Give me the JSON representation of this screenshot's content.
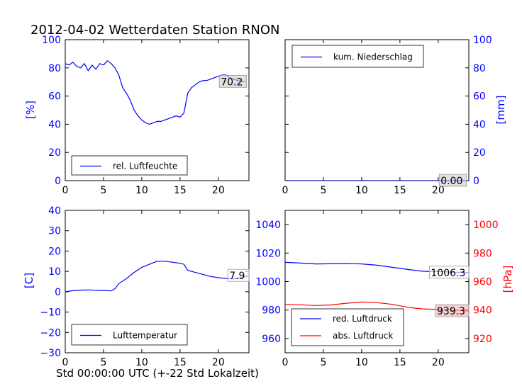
{
  "title": "2012-04-02 Wetterdaten Station RNON",
  "xlabel": "Std 00:00:00 UTC (+-22 Std Lokalzeit)",
  "colors": {
    "blue": "#0000ff",
    "red": "#ff0000",
    "black": "#000000"
  },
  "chart_data": [
    {
      "type": "line",
      "panel": "top-left",
      "ylabel": "[%]",
      "xlim": [
        0,
        24
      ],
      "ylim": [
        0,
        100
      ],
      "xticks": [
        "0",
        "5",
        "10",
        "15",
        "20"
      ],
      "yticks": [
        "0",
        "20",
        "40",
        "60",
        "80",
        "100"
      ],
      "legend": "bottom-left",
      "series": [
        {
          "name": "rel. Luftfeuchte",
          "color": "#0000ff",
          "points": [
            [
              0,
              83
            ],
            [
              0.5,
              82
            ],
            [
              1,
              84
            ],
            [
              1.5,
              81
            ],
            [
              2,
              80
            ],
            [
              2.5,
              83
            ],
            [
              3,
              78
            ],
            [
              3.5,
              82
            ],
            [
              4,
              79
            ],
            [
              4.5,
              83
            ],
            [
              5,
              82
            ],
            [
              5.5,
              85
            ],
            [
              6,
              83
            ],
            [
              6.5,
              80
            ],
            [
              7,
              75
            ],
            [
              7.5,
              66
            ],
            [
              8,
              62
            ],
            [
              8.5,
              57
            ],
            [
              9,
              50
            ],
            [
              9.5,
              46
            ],
            [
              10,
              43
            ],
            [
              10.5,
              41
            ],
            [
              11,
              40
            ],
            [
              11.5,
              41
            ],
            [
              12,
              42
            ],
            [
              12.5,
              42
            ],
            [
              13,
              43
            ],
            [
              13.5,
              44
            ],
            [
              14,
              45
            ],
            [
              14.5,
              46
            ],
            [
              15,
              45
            ],
            [
              15.5,
              48
            ],
            [
              16,
              62
            ],
            [
              16.5,
              66
            ],
            [
              17,
              68
            ],
            [
              17.5,
              70
            ],
            [
              18,
              71
            ],
            [
              18.5,
              71
            ],
            [
              19,
              72
            ],
            [
              19.5,
              73
            ],
            [
              20,
              74
            ],
            [
              20.5,
              75
            ],
            [
              21,
              75
            ],
            [
              21.5,
              73
            ],
            [
              22,
              72
            ],
            [
              22.5,
              71
            ],
            [
              23,
              70.5
            ],
            [
              23.5,
              70.2
            ]
          ]
        }
      ],
      "annotations": [
        {
          "text": "70.2",
          "x": 23.5,
          "y": 70.2,
          "boxcolor": "#cccccc"
        }
      ]
    },
    {
      "type": "line",
      "panel": "top-right",
      "ylabel": "[mm]",
      "xlim": [
        0,
        24
      ],
      "ylim": [
        0,
        100
      ],
      "xticks": [
        "0",
        "5",
        "10",
        "15",
        "20"
      ],
      "yticks": [
        "0",
        "20",
        "40",
        "60",
        "80",
        "100"
      ],
      "legend": "top-left",
      "series": [
        {
          "name": "kum. Niederschlag",
          "color": "#0000ff",
          "points": [
            [
              0,
              0
            ],
            [
              24,
              0
            ]
          ]
        }
      ],
      "annotations": [
        {
          "text": "0.00",
          "x": 23.5,
          "y": 0,
          "boxcolor": "#cccccc"
        }
      ]
    },
    {
      "type": "line",
      "panel": "bottom-left",
      "ylabel": "[C]",
      "xlim": [
        0,
        24
      ],
      "ylim": [
        -30,
        40
      ],
      "xticks": [
        "0",
        "5",
        "10",
        "15",
        "20"
      ],
      "yticks": [
        "−30",
        "−20",
        "−10",
        "0",
        "10",
        "20",
        "30",
        "40"
      ],
      "legend": "bottom-left",
      "series": [
        {
          "name": "Lufttemperatur",
          "color": "#0000ff",
          "points": [
            [
              0,
              0
            ],
            [
              1,
              0.5
            ],
            [
              2,
              0.8
            ],
            [
              3,
              0.9
            ],
            [
              4,
              0.7
            ],
            [
              5,
              0.6
            ],
            [
              6,
              0.4
            ],
            [
              6.5,
              1.5
            ],
            [
              7,
              4
            ],
            [
              8,
              6.5
            ],
            [
              9,
              9.5
            ],
            [
              10,
              12
            ],
            [
              11,
              13.5
            ],
            [
              12,
              15
            ],
            [
              13,
              15
            ],
            [
              14,
              14.5
            ],
            [
              15,
              14
            ],
            [
              15.5,
              13.5
            ],
            [
              16,
              10.5
            ],
            [
              17,
              9.5
            ],
            [
              18,
              8.5
            ],
            [
              19,
              7.5
            ],
            [
              20,
              6.9
            ],
            [
              21,
              6.5
            ],
            [
              22,
              6.3
            ],
            [
              23,
              7
            ],
            [
              24,
              7.9
            ]
          ]
        }
      ],
      "annotations": [
        {
          "text": "7.9",
          "x": 24,
          "y": 7.9,
          "boxcolor": "#ffffff"
        }
      ]
    },
    {
      "type": "line",
      "panel": "bottom-right",
      "ylabel_right": "[hPa]",
      "xlim": [
        0,
        24
      ],
      "ylim_left": [
        950,
        1050
      ],
      "ylim_right": [
        910,
        1010
      ],
      "xticks": [
        "0",
        "5",
        "10",
        "15",
        "20"
      ],
      "yticks_left": [
        "960",
        "980",
        "1000",
        "1020",
        "1040"
      ],
      "yticks_right": [
        "920",
        "940",
        "960",
        "980",
        "1000"
      ],
      "legend": "bottom-left",
      "series": [
        {
          "name": "red. Luftdruck",
          "color": "#0000ff",
          "axis": "left",
          "points": [
            [
              0,
              1013.5
            ],
            [
              2,
              1013
            ],
            [
              4,
              1012.4
            ],
            [
              6,
              1012.5
            ],
            [
              8,
              1012.6
            ],
            [
              10,
              1012.4
            ],
            [
              12,
              1011.5
            ],
            [
              14,
              1010
            ],
            [
              16,
              1008.5
            ],
            [
              18,
              1007.2
            ],
            [
              20,
              1007
            ],
            [
              22,
              1006.6
            ],
            [
              24,
              1006.3
            ]
          ]
        },
        {
          "name": "abs. Luftdruck",
          "color": "#ff0000",
          "axis": "right",
          "points": [
            [
              0,
              944
            ],
            [
              2,
              943.7
            ],
            [
              4,
              943.2
            ],
            [
              6,
              943.6
            ],
            [
              8,
              944.8
            ],
            [
              10,
              945.6
            ],
            [
              12,
              945.2
            ],
            [
              14,
              944
            ],
            [
              15,
              943
            ],
            [
              16,
              942
            ],
            [
              17,
              941.3
            ],
            [
              18,
              940.8
            ],
            [
              20,
              940.4
            ],
            [
              22,
              940
            ],
            [
              24,
              939.3
            ]
          ]
        }
      ],
      "annotations": [
        {
          "text": "1006.3",
          "x": 24,
          "y": 1006.3,
          "axis": "left",
          "boxcolor": "#ffffff"
        },
        {
          "text": "939.3",
          "x": 24,
          "y": 939.3,
          "axis": "right",
          "boxcolor": "#f0b0b0"
        }
      ]
    }
  ]
}
